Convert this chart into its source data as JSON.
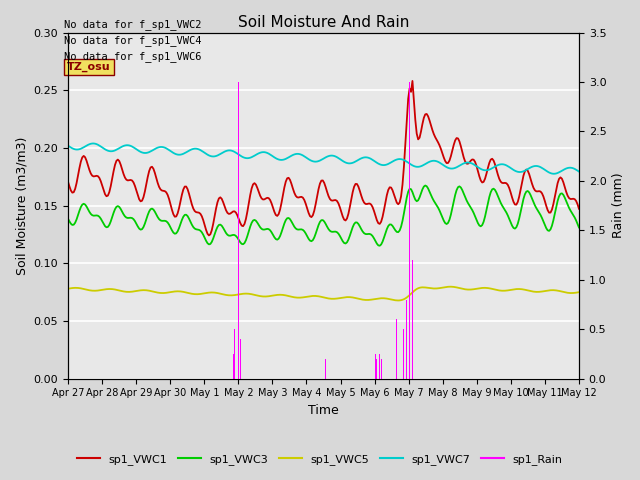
{
  "title": "Soil Moisture And Rain",
  "xlabel": "Time",
  "ylabel_left": "Soil Moisture (m3/m3)",
  "ylabel_right": "Rain (mm)",
  "no_data_text": [
    "No data for f_sp1_VWC2",
    "No data for f_sp1_VWC4",
    "No data for f_sp1_VWC6"
  ],
  "tz_label": "TZ_osu",
  "x_tick_labels": [
    "Apr 27",
    "Apr 28",
    "Apr 29",
    "Apr 30",
    "May 1",
    "May 2",
    "May 3",
    "May 4",
    "May 5",
    "May 6",
    "May 7",
    "May 8",
    "May 9",
    "May 10",
    "May 11",
    "May 12"
  ],
  "ylim_left": [
    0.0,
    0.3
  ],
  "ylim_right": [
    0.0,
    3.5
  ],
  "yticks_left": [
    0.0,
    0.05,
    0.1,
    0.15,
    0.2,
    0.25,
    0.3
  ],
  "yticks_right": [
    0.0,
    0.5,
    1.0,
    1.5,
    2.0,
    2.5,
    3.0,
    3.5
  ],
  "legend_entries": [
    "sp1_VWC1",
    "sp1_VWC3",
    "sp1_VWC5",
    "sp1_VWC7",
    "sp1_Rain"
  ],
  "line_colors": [
    "#cc0000",
    "#00cc00",
    "#cccc00",
    "#00cccc",
    "#ff00ff"
  ],
  "fig_size": [
    6.4,
    4.8
  ],
  "dpi": 100
}
